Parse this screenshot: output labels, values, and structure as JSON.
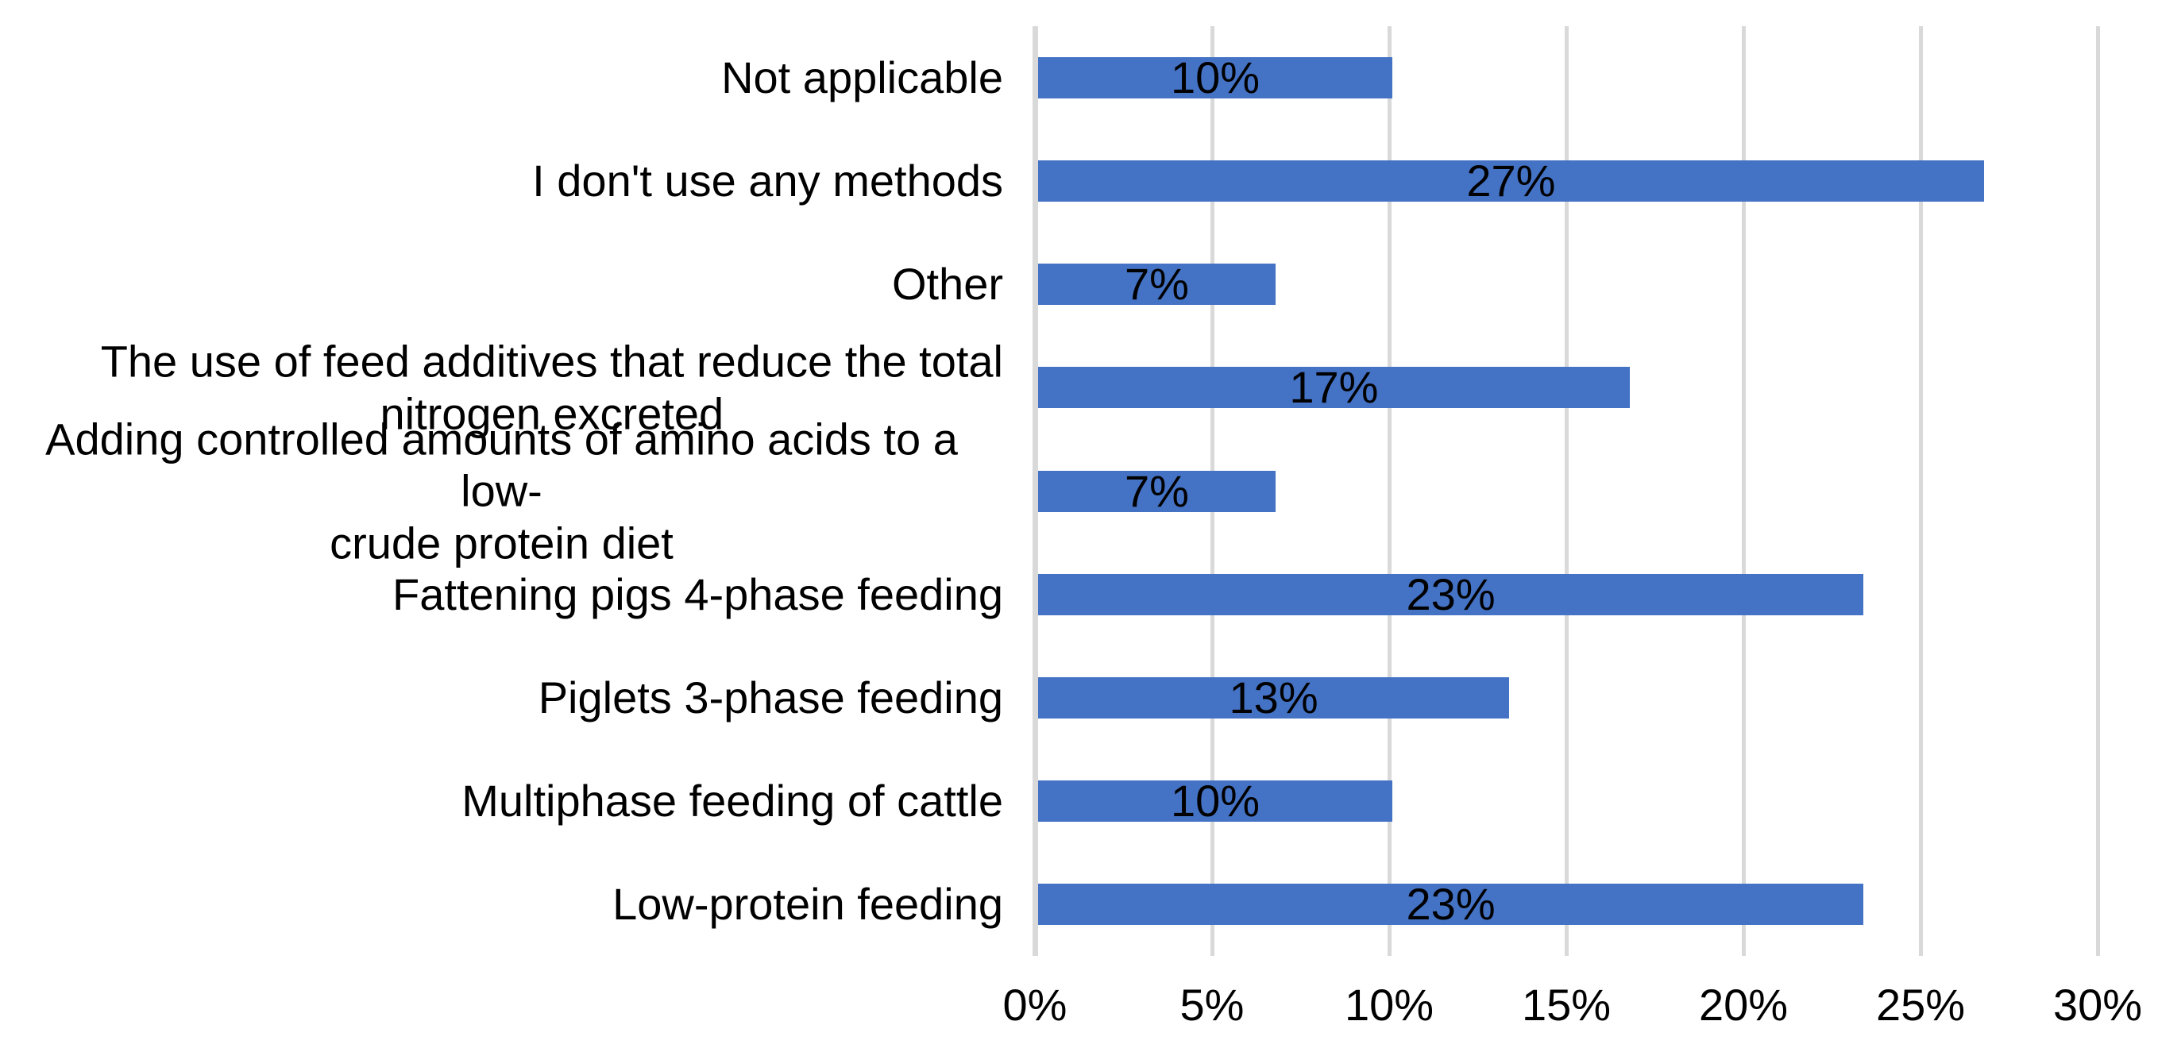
{
  "chart_data": {
    "type": "bar",
    "orientation": "horizontal",
    "title": "",
    "categories": [
      "Not applicable",
      "I don't use any methods",
      "Other",
      "The use of feed additives that reduce the total\nnitrogen excreted",
      "Adding controlled amounts of amino acids to a low-\ncrude protein diet",
      "Fattening pigs 4-phase feeding",
      "Piglets 3-phase feeding",
      "Multiphase feeding of cattle",
      "Low-protein feeding"
    ],
    "values": [
      10,
      26.7,
      6.7,
      16.7,
      6.7,
      23.3,
      13.3,
      10,
      23.3
    ],
    "value_labels": [
      "10%",
      "27%",
      "7%",
      "17%",
      "7%",
      "23%",
      "13%",
      "10%",
      "23%"
    ],
    "x_axis": {
      "min": 0,
      "max": 30,
      "step": 5,
      "ticks": [
        "0%",
        "5%",
        "10%",
        "15%",
        "20%",
        "25%",
        "30%"
      ]
    },
    "grid": "vertical-on",
    "legend": "none",
    "colors": {
      "bar": "#4472C4",
      "gridline": "#D9D9D9",
      "axis_line": "#D9D9D9",
      "text": "#000000",
      "background": "#FFFFFF"
    }
  }
}
